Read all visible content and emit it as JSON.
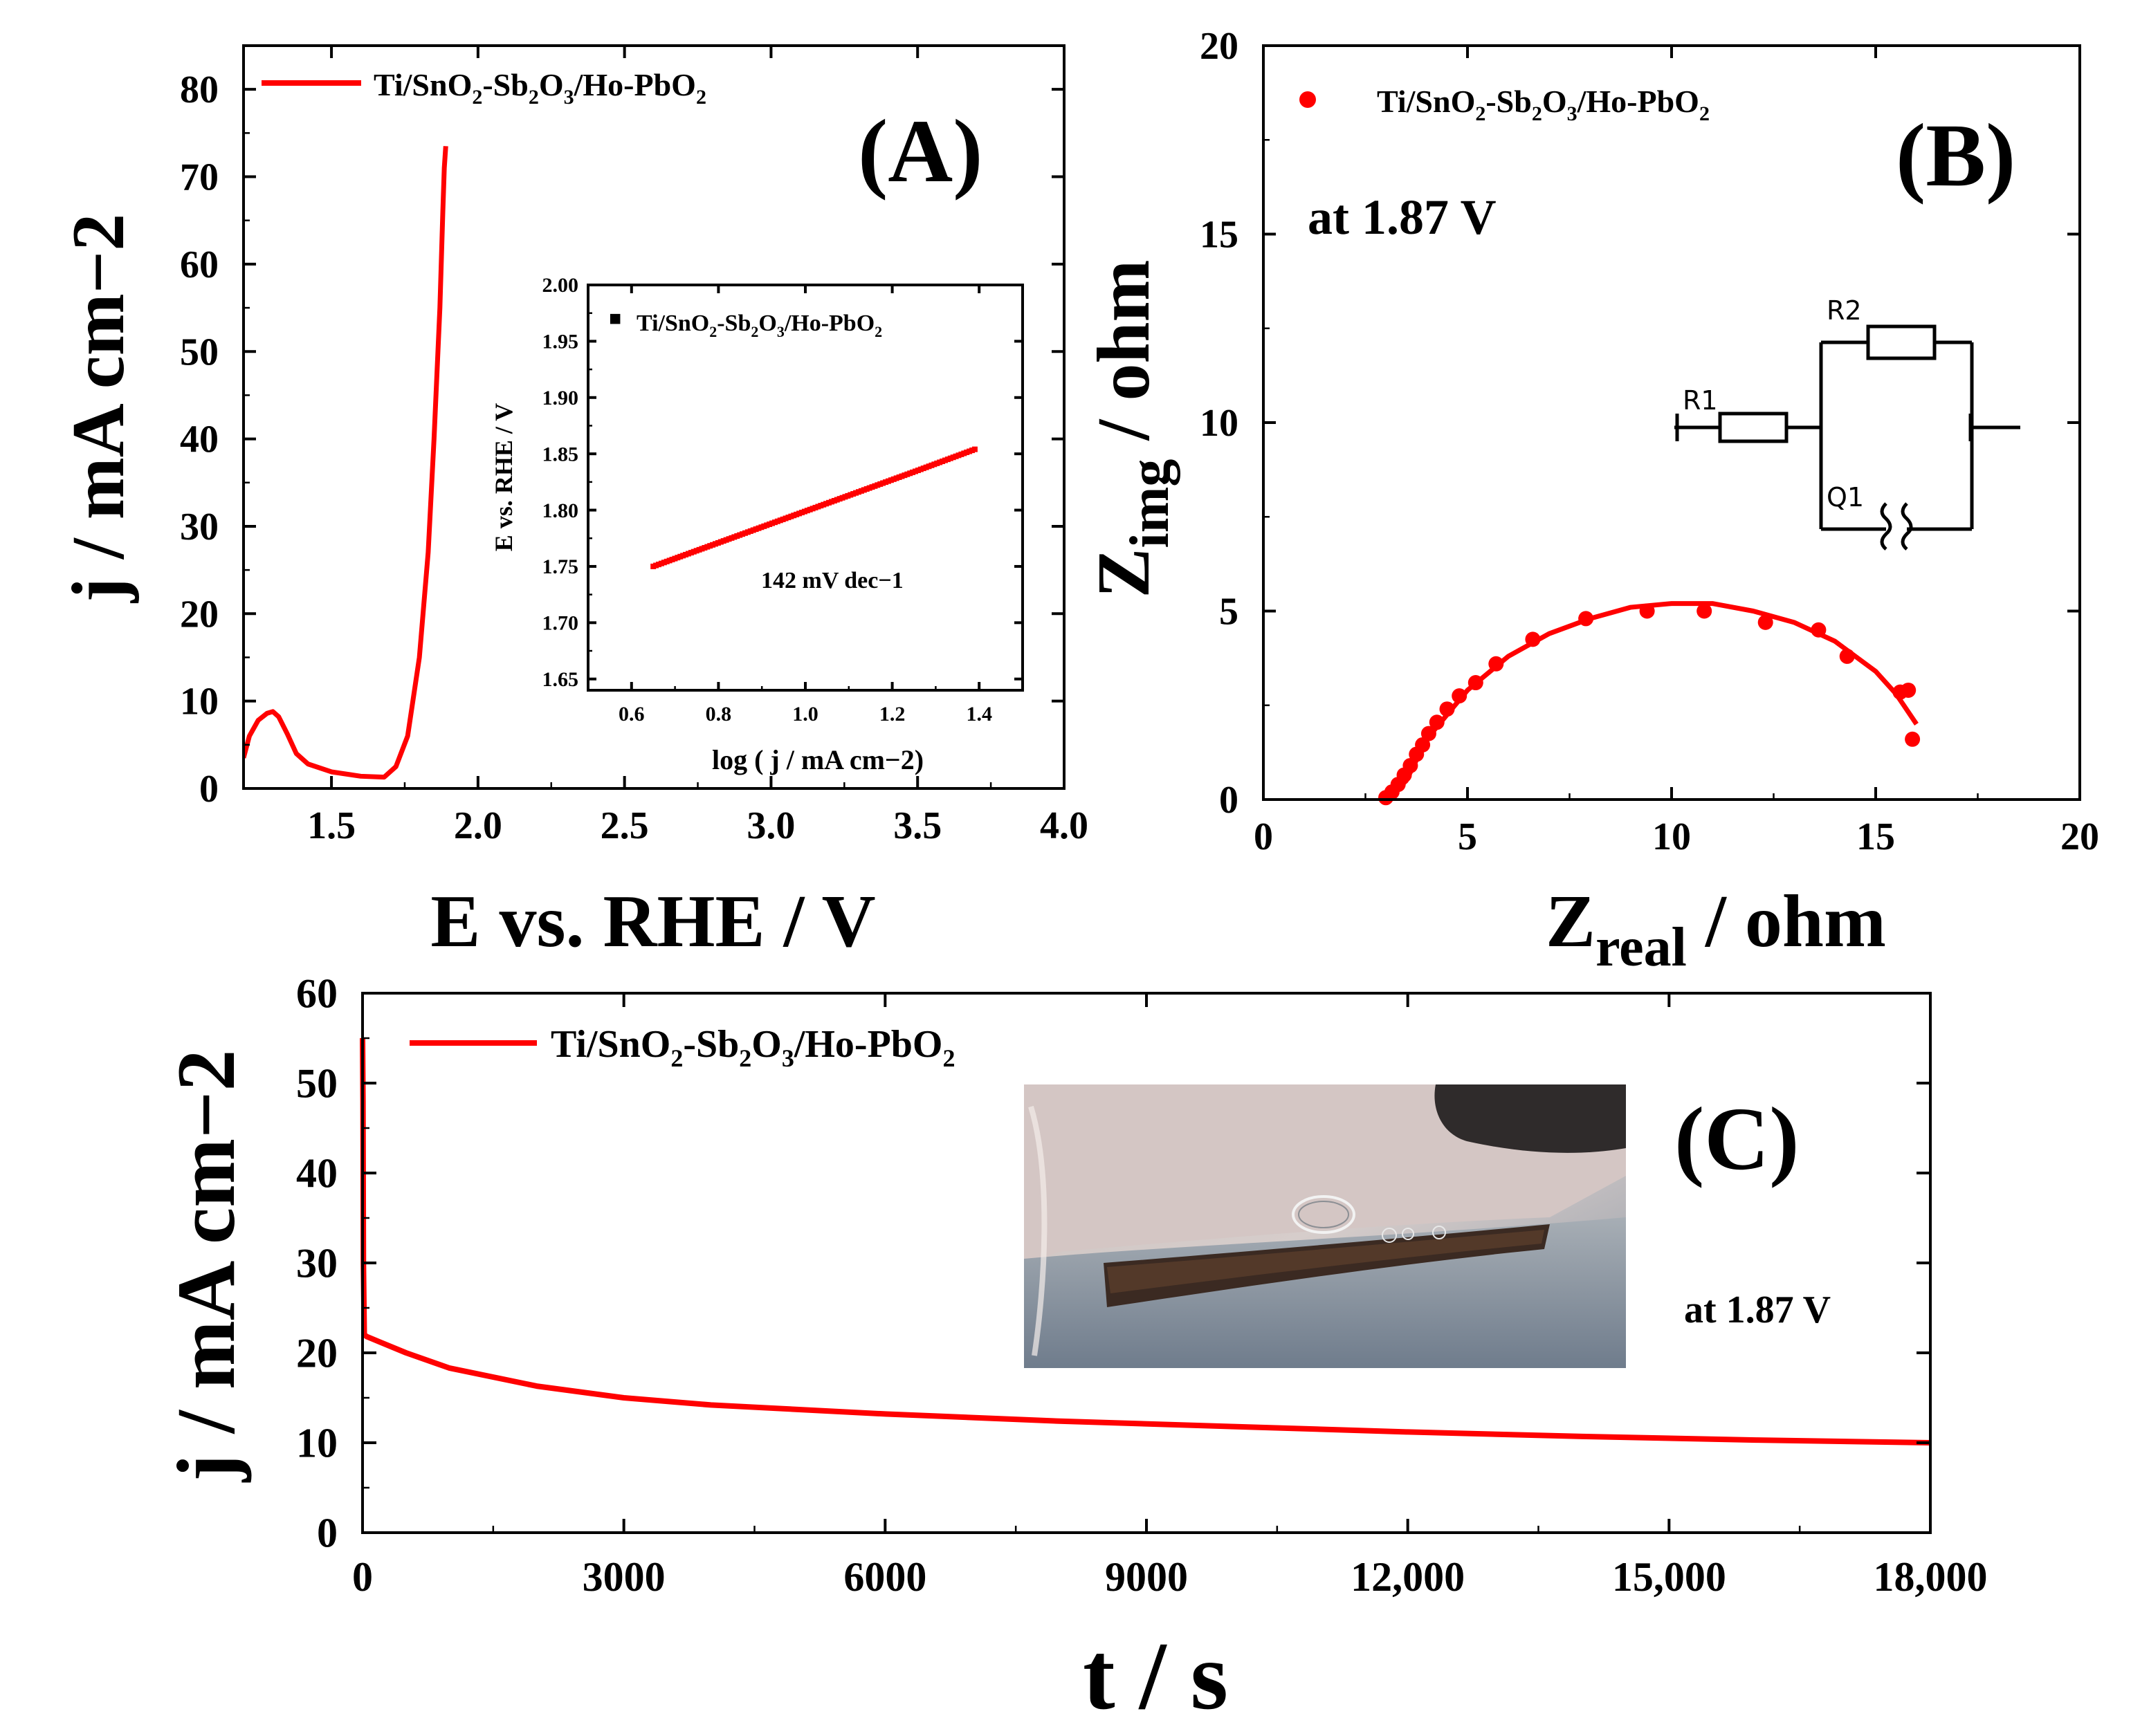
{
  "colors": {
    "series": "#ff0000",
    "axis": "#000000",
    "background": "#ffffff"
  },
  "chart_data": [
    {
      "panel": "(A)",
      "type": "line",
      "legend": "Ti/SnO2-Sb2O3/Ho-PbO2",
      "legend_parts": {
        "p1": "Ti/SnO",
        "s1": "2",
        "p2": "-Sb",
        "s2": "2",
        "p3": "O",
        "s3": "3",
        "p4": "/Ho-PbO",
        "s4": "2"
      },
      "xlabel": "E vs. RHE / V",
      "ylabel": "j / mA cm−2",
      "xlim": [
        1.2,
        4.0
      ],
      "ylim": [
        0,
        85
      ],
      "xticks": [
        "1.5",
        "2.0",
        "2.5",
        "3.0",
        "3.5",
        "4.0"
      ],
      "xtick_values": [
        1.5,
        2.0,
        2.5,
        3.0,
        3.5,
        4.0
      ],
      "yticks": [
        "0",
        "10",
        "20",
        "30",
        "40",
        "50",
        "60",
        "70",
        "80"
      ],
      "ytick_values": [
        0,
        10,
        20,
        30,
        40,
        50,
        60,
        70,
        80
      ],
      "x": [
        1.2,
        1.22,
        1.25,
        1.28,
        1.3,
        1.32,
        1.35,
        1.38,
        1.42,
        1.5,
        1.6,
        1.68,
        1.72,
        1.76,
        1.8,
        1.83,
        1.85,
        1.87,
        1.88,
        1.885,
        1.89
      ],
      "y": [
        3.5,
        6,
        7.8,
        8.6,
        8.8,
        8.2,
        6.2,
        4,
        2.8,
        1.9,
        1.4,
        1.3,
        2.5,
        6,
        15,
        27,
        40,
        55,
        66,
        71,
        73.5
      ]
    },
    {
      "panel": "(A) inset",
      "type": "scatter",
      "legend": "Ti/SnO2-Sb2O3/Ho-PbO2",
      "xlabel": "log ( j / mA cm−2)",
      "ylabel": "E vs. RHE / V",
      "xlim": [
        0.5,
        1.5
      ],
      "ylim": [
        1.64,
        2.0
      ],
      "xticks": [
        "0.6",
        "0.8",
        "1.0",
        "1.2",
        "1.4"
      ],
      "xtick_values": [
        0.6,
        0.8,
        1.0,
        1.2,
        1.4
      ],
      "yticks": [
        "1.65",
        "1.70",
        "1.75",
        "1.80",
        "1.85",
        "1.90",
        "1.95",
        "2.00"
      ],
      "ytick_values": [
        1.65,
        1.7,
        1.75,
        1.8,
        1.85,
        1.9,
        1.95,
        2.0
      ],
      "x": [
        0.65,
        0.75,
        0.85,
        0.95,
        1.05,
        1.15,
        1.25,
        1.39
      ],
      "y": [
        1.75,
        1.764,
        1.778,
        1.792,
        1.806,
        1.82,
        1.834,
        1.854
      ],
      "annotation": "142 mV dec−1"
    },
    {
      "panel": "(B)",
      "type": "scatter",
      "legend": "Ti/SnO2-Sb2O3/Ho-PbO2",
      "annotation": "at 1.87 V",
      "xlabel": "Zreal / ohm",
      "ylabel": "Zimg / ohm",
      "xlabel_parts": {
        "main": "Z",
        "sub": "real",
        "rest": " / ohm"
      },
      "ylabel_parts": {
        "main": "Z",
        "sub": "img",
        "rest": " / ohm"
      },
      "xlim": [
        0,
        20
      ],
      "ylim": [
        0,
        20
      ],
      "xticks": [
        "0",
        "5",
        "10",
        "15",
        "20"
      ],
      "xtick_values": [
        0,
        5,
        10,
        15,
        20
      ],
      "yticks": [
        "0",
        "5",
        "10",
        "15",
        "20"
      ],
      "ytick_values": [
        0,
        5,
        10,
        15,
        20
      ],
      "x": [
        3.0,
        3.15,
        3.3,
        3.45,
        3.6,
        3.75,
        3.9,
        4.05,
        4.25,
        4.5,
        4.8,
        5.2,
        5.7,
        6.6,
        7.9,
        9.4,
        10.8,
        12.3,
        13.6,
        14.3,
        15.6,
        15.8,
        15.9
      ],
      "y": [
        0.05,
        0.2,
        0.4,
        0.65,
        0.9,
        1.2,
        1.45,
        1.75,
        2.05,
        2.4,
        2.75,
        3.1,
        3.6,
        4.25,
        4.8,
        5.0,
        5.0,
        4.7,
        4.5,
        3.8,
        2.85,
        2.9,
        1.6
      ],
      "fit_x": [
        3.0,
        3.5,
        4.0,
        5.0,
        6.0,
        7.0,
        8.0,
        9.0,
        10.0,
        11.0,
        12.0,
        13.0,
        14.0,
        15.0,
        15.5,
        16.0
      ],
      "fit_y": [
        0.0,
        0.5,
        1.6,
        2.9,
        3.8,
        4.4,
        4.8,
        5.1,
        5.2,
        5.2,
        5.0,
        4.7,
        4.2,
        3.4,
        2.8,
        2.0
      ],
      "circuit": {
        "r1": "R1",
        "r2": "R2",
        "q1": "Q1"
      }
    },
    {
      "panel": "(C)",
      "type": "line",
      "legend": "Ti/SnO2-Sb2O3/Ho-PbO2",
      "annotation": "at 1.87 V",
      "xlabel": "t / s",
      "ylabel": "j / mA cm−2",
      "xlim": [
        0,
        18000
      ],
      "ylim": [
        0,
        60
      ],
      "xticks": [
        "0",
        "3000",
        "6000",
        "9000",
        "12,000",
        "15,000",
        "18,000"
      ],
      "xtick_values": [
        0,
        3000,
        6000,
        9000,
        12000,
        15000,
        18000
      ],
      "yticks": [
        "0",
        "10",
        "20",
        "30",
        "40",
        "50",
        "60"
      ],
      "ytick_values": [
        0,
        10,
        20,
        30,
        40,
        50,
        60
      ],
      "x": [
        0,
        5,
        10,
        20,
        50,
        200,
        500,
        1000,
        2000,
        3000,
        4000,
        6000,
        8000,
        10000,
        12000,
        14000,
        16000,
        18000
      ],
      "y": [
        55,
        48,
        30,
        22,
        21.8,
        21.2,
        20,
        18.3,
        16.3,
        15,
        14.2,
        13.2,
        12.4,
        11.8,
        11.2,
        10.7,
        10.3,
        10
      ]
    }
  ]
}
